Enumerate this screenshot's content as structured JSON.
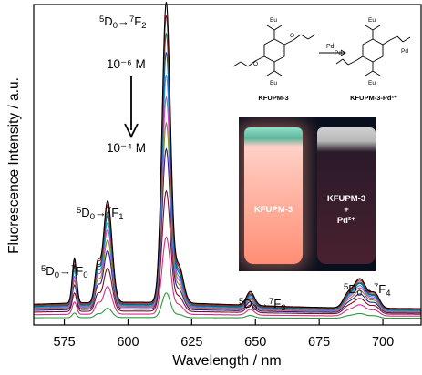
{
  "chart_data": {
    "type": "line",
    "xlabel": "Wavelength / nm",
    "ylabel": "Fluorescence Intensity / a.u.",
    "xlim": [
      563,
      715
    ],
    "x_ticks": [
      "575",
      "600",
      "625",
      "650",
      "675",
      "700"
    ],
    "x_tick_values": [
      575,
      600,
      625,
      650,
      675,
      700
    ],
    "ylim": [
      0,
      1
    ],
    "concentration_high": "10⁻⁶ M",
    "concentration_low": "10⁻⁴ M",
    "annotations": [
      {
        "base": "⁵D₀→⁷F₀",
        "text": "5D0→7F0",
        "x": 579
      },
      {
        "base": "⁵D₀→⁷F₁",
        "text": "5D0→7F1",
        "x": 592
      },
      {
        "base": "⁵D₀→⁷F₂",
        "text": "5D0→7F2",
        "x": 615
      },
      {
        "base": "⁵D₀→⁷F₃",
        "text": "5D0→7F3",
        "x": 648
      },
      {
        "base": "⁵D₀→⁷F₄",
        "text": "5D0→7F4",
        "x": 691
      }
    ],
    "peaks": {
      "x": [
        579,
        592,
        615,
        648,
        691
      ],
      "widths": [
        1.2,
        2.4,
        2.3,
        2.2,
        3.8
      ]
    },
    "series": [
      {
        "color": "#000000",
        "peak_values": [
          0.145,
          0.33,
          0.975,
          0.045,
          0.095
        ],
        "baseline": 0.035
      },
      {
        "color": "#c0142a",
        "peak_values": [
          0.14,
          0.32,
          0.935,
          0.043,
          0.092
        ],
        "baseline": 0.033
      },
      {
        "color": "#0c7a3a",
        "peak_values": [
          0.13,
          0.3,
          0.88,
          0.041,
          0.088
        ],
        "baseline": 0.031
      },
      {
        "color": "#1d3fd0",
        "peak_values": [
          0.125,
          0.29,
          0.82,
          0.04,
          0.085
        ],
        "baseline": 0.03
      },
      {
        "color": "#16a3c4",
        "peak_values": [
          0.115,
          0.27,
          0.75,
          0.038,
          0.08
        ],
        "baseline": 0.028
      },
      {
        "color": "#e23bd6",
        "peak_values": [
          0.1,
          0.25,
          0.68,
          0.036,
          0.075
        ],
        "baseline": 0.026
      },
      {
        "color": "#8a8a1c",
        "peak_values": [
          0.09,
          0.22,
          0.6,
          0.033,
          0.068
        ],
        "baseline": 0.024
      },
      {
        "color": "#2a1a9a",
        "peak_values": [
          0.08,
          0.19,
          0.52,
          0.03,
          0.06
        ],
        "baseline": 0.021
      },
      {
        "color": "#7a1020",
        "peak_values": [
          0.06,
          0.14,
          0.39,
          0.025,
          0.05
        ],
        "baseline": 0.017
      },
      {
        "color": "#d42e8a",
        "peak_values": [
          0.04,
          0.09,
          0.25,
          0.018,
          0.036
        ],
        "baseline": 0.011
      },
      {
        "color": "#2c9a3c",
        "peak_values": [
          0.015,
          0.03,
          0.08,
          0.008,
          0.015
        ],
        "baseline": 0.004
      }
    ]
  },
  "scheme": {
    "left_label": "KFUPM-3",
    "right_label": "KFUPM-3-Pd²⁺",
    "arrow_label": "Pd",
    "eu_label": "Eu",
    "pd_label": "Pd",
    "o_label": "O"
  },
  "photo": {
    "left_vial_label": "KFUPM-3",
    "right_vial_line1": "KFUPM-3",
    "right_vial_line2": "+",
    "right_vial_line3": "Pd²⁺"
  }
}
